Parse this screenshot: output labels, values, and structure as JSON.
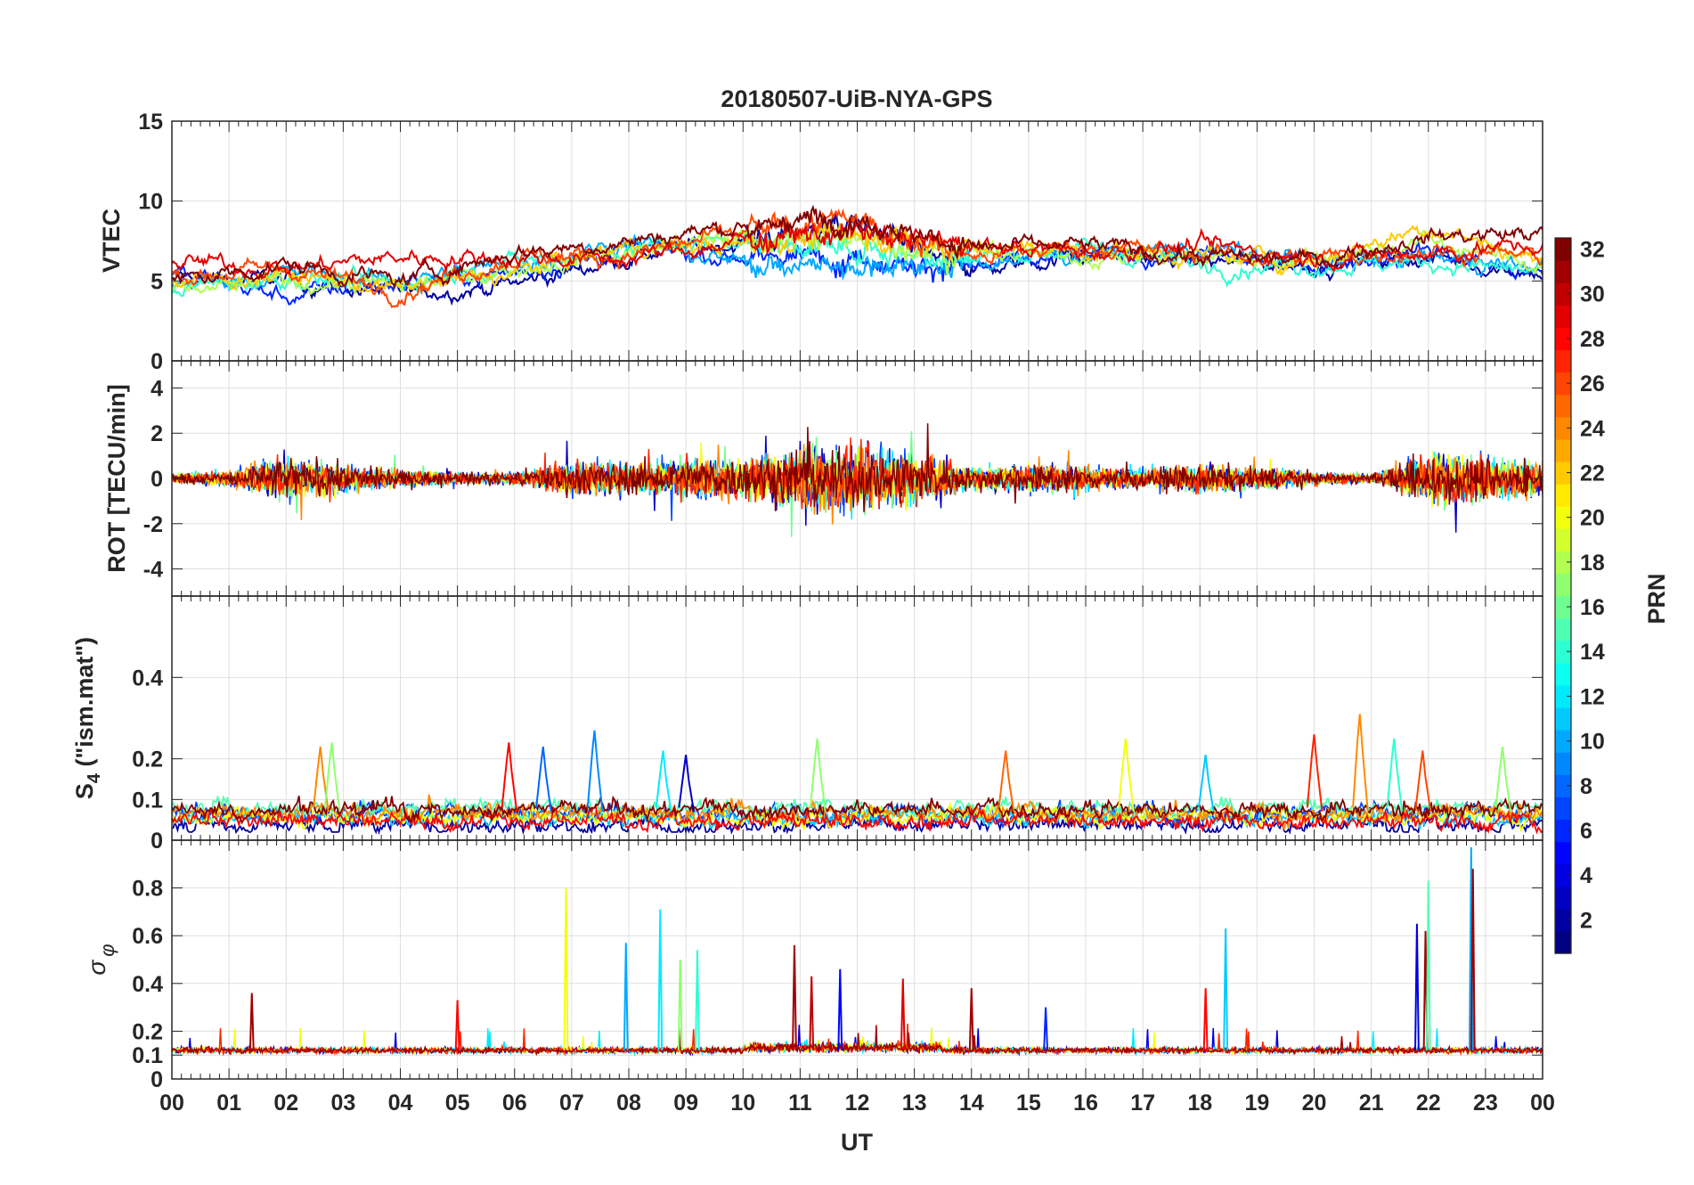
{
  "figure_title": "20180507-UiB-NYA-GPS",
  "xlabel": "UT",
  "colorbar": {
    "label": "PRN",
    "range": [
      1,
      32
    ],
    "ticks": [
      "2",
      "4",
      "6",
      "8",
      "10",
      "12",
      "14",
      "16",
      "18",
      "20",
      "22",
      "24",
      "26",
      "28",
      "30",
      "32"
    ]
  },
  "x_ticks": [
    "00",
    "01",
    "02",
    "03",
    "04",
    "05",
    "06",
    "07",
    "08",
    "09",
    "10",
    "11",
    "12",
    "13",
    "14",
    "15",
    "16",
    "17",
    "18",
    "19",
    "20",
    "21",
    "22",
    "23",
    "00"
  ],
  "chart_data": [
    {
      "type": "line",
      "id": "vtec",
      "title": "20180507-UiB-NYA-GPS",
      "ylabel": "VTEC",
      "xlim": [
        0,
        24
      ],
      "ylim": [
        0,
        15
      ],
      "y_ticks": [
        "0",
        "5",
        "10",
        "15"
      ],
      "series": [
        {
          "name": "PRN 2",
          "prn": 2,
          "x": [
            0,
            2,
            4,
            6,
            8,
            10,
            12,
            14,
            16,
            18,
            20,
            22,
            24
          ],
          "values": [
            5.2,
            5.0,
            4.2,
            4.8,
            6.5,
            7.5,
            8.5,
            5.5,
            6.8,
            6.2,
            6.0,
            6.5,
            5.5
          ]
        },
        {
          "name": "PRN 6",
          "prn": 6,
          "x": [
            0,
            2,
            4,
            6,
            8,
            10,
            12,
            14,
            16,
            18,
            20,
            22,
            24
          ],
          "values": [
            5.5,
            4.0,
            5.0,
            5.5,
            7.0,
            6.5,
            6.5,
            5.8,
            6.5,
            6.5,
            6.0,
            7.0,
            5.2
          ]
        },
        {
          "name": "PRN 10",
          "prn": 10,
          "x": [
            0,
            2,
            4,
            6,
            8,
            10,
            12,
            14,
            16,
            18,
            20,
            22,
            24
          ],
          "values": [
            4.8,
            5.5,
            5.0,
            6.0,
            7.5,
            6.0,
            6.0,
            6.2,
            6.7,
            7.0,
            6.3,
            6.5,
            5.8
          ]
        },
        {
          "name": "PRN 14",
          "prn": 14,
          "x": [
            0,
            2,
            4,
            6,
            8,
            10,
            12,
            14,
            16,
            18,
            20,
            22,
            24
          ],
          "values": [
            4.5,
            5.2,
            4.8,
            6.2,
            7.0,
            7.5,
            7.0,
            6.5,
            7.0,
            6.0,
            6.0,
            6.2,
            5.5
          ]
        },
        {
          "name": "PRN 18",
          "prn": 18,
          "x": [
            0,
            2,
            4,
            6,
            8,
            10,
            12,
            14,
            16,
            18,
            20,
            22,
            24
          ],
          "values": [
            4.2,
            5.0,
            4.6,
            5.8,
            6.8,
            7.8,
            7.5,
            6.8,
            6.6,
            6.4,
            6.5,
            7.5,
            6.0
          ]
        },
        {
          "name": "PRN 22",
          "prn": 22,
          "x": [
            0,
            2,
            4,
            6,
            8,
            10,
            12,
            14,
            16,
            18,
            20,
            22,
            24
          ],
          "values": [
            4.9,
            5.4,
            4.5,
            5.5,
            7.2,
            7.2,
            8.0,
            7.0,
            7.0,
            6.6,
            6.2,
            8.5,
            6.2
          ]
        },
        {
          "name": "PRN 26",
          "prn": 26,
          "x": [
            0,
            2,
            4,
            6,
            8,
            10,
            12,
            14,
            16,
            18,
            20,
            22,
            24
          ],
          "values": [
            5.3,
            5.8,
            4.4,
            6.5,
            6.6,
            8.0,
            8.8,
            6.4,
            7.2,
            6.7,
            6.4,
            7.0,
            6.5
          ]
        },
        {
          "name": "PRN 29",
          "prn": 29,
          "x": [
            0,
            2,
            4,
            6,
            8,
            10,
            12,
            14,
            16,
            18,
            20,
            22,
            24
          ],
          "values": [
            6.2,
            5.8,
            6.5,
            6.5,
            6.4,
            7.5,
            8.0,
            7.2,
            6.8,
            7.2,
            6.5,
            6.8,
            7.2
          ]
        },
        {
          "name": "PRN 32",
          "prn": 32,
          "x": [
            0,
            2,
            4,
            6,
            8,
            10,
            12,
            14,
            16,
            18,
            20,
            22,
            24
          ],
          "values": [
            5.0,
            6.0,
            5.0,
            6.8,
            7.5,
            8.5,
            9.0,
            7.0,
            7.2,
            6.5,
            6.3,
            7.8,
            8.0
          ]
        }
      ]
    },
    {
      "type": "line",
      "id": "rot",
      "ylabel": "ROT [TECU/min]",
      "xlim": [
        0,
        24
      ],
      "ylim": [
        -5.2,
        5.2
      ],
      "y_ticks": [
        "-4",
        "-2",
        "0",
        "2",
        "4"
      ],
      "activity_envelope": {
        "x": [
          0,
          1,
          2,
          3,
          4,
          5,
          6,
          7,
          8,
          9,
          10,
          11,
          12,
          13,
          14,
          15,
          16,
          17,
          18,
          19,
          20,
          21,
          22,
          23,
          24
        ],
        "amplitude": [
          0.5,
          0.7,
          2.2,
          1.3,
          0.8,
          0.6,
          0.6,
          1.6,
          1.6,
          1.8,
          2.0,
          3.2,
          3.0,
          2.6,
          1.0,
          1.4,
          1.2,
          0.9,
          1.3,
          1.2,
          0.6,
          0.4,
          2.6,
          2.0,
          1.6
        ]
      },
      "series": [
        {
          "name": "PRN 3",
          "prn": 3
        },
        {
          "name": "PRN 7",
          "prn": 7
        },
        {
          "name": "PRN 12",
          "prn": 12
        },
        {
          "name": "PRN 16",
          "prn": 16
        },
        {
          "name": "PRN 20",
          "prn": 20
        },
        {
          "name": "PRN 24",
          "prn": 24
        },
        {
          "name": "PRN 27",
          "prn": 27
        },
        {
          "name": "PRN 32",
          "prn": 32
        }
      ]
    },
    {
      "type": "line",
      "id": "s4",
      "ylabel_main": "S",
      "ylabel_sub": "4",
      "ylabel_rest": " (\"ism.mat\")",
      "xlim": [
        0,
        24
      ],
      "ylim": [
        0,
        0.6
      ],
      "y_ticks": [
        "0",
        "0.1",
        "0.2",
        "0.4"
      ],
      "tick_values": [
        0,
        0.1,
        0.2,
        0.4
      ],
      "series": [
        {
          "name": "PRN 2",
          "prn": 2,
          "base": 0.03
        },
        {
          "name": "PRN 7",
          "prn": 7,
          "base": 0.06
        },
        {
          "name": "PRN 11",
          "prn": 11,
          "base": 0.05
        },
        {
          "name": "PRN 15",
          "prn": 15,
          "base": 0.07
        },
        {
          "name": "PRN 20",
          "prn": 20,
          "base": 0.05
        },
        {
          "name": "PRN 24",
          "prn": 24,
          "base": 0.06
        },
        {
          "name": "PRN 28",
          "prn": 28,
          "base": 0.04
        },
        {
          "name": "PRN 32",
          "prn": 32,
          "base": 0.07
        }
      ],
      "peaks": [
        {
          "x": 2.6,
          "y": 0.23,
          "prn": 24
        },
        {
          "x": 2.8,
          "y": 0.24,
          "prn": 17
        },
        {
          "x": 5.9,
          "y": 0.24,
          "prn": 28
        },
        {
          "x": 6.5,
          "y": 0.23,
          "prn": 8
        },
        {
          "x": 7.4,
          "y": 0.27,
          "prn": 9
        },
        {
          "x": 8.6,
          "y": 0.22,
          "prn": 12
        },
        {
          "x": 9.0,
          "y": 0.21,
          "prn": 3
        },
        {
          "x": 11.3,
          "y": 0.25,
          "prn": 17
        },
        {
          "x": 14.6,
          "y": 0.22,
          "prn": 25
        },
        {
          "x": 16.7,
          "y": 0.25,
          "prn": 20
        },
        {
          "x": 18.1,
          "y": 0.21,
          "prn": 11
        },
        {
          "x": 20.0,
          "y": 0.26,
          "prn": 27
        },
        {
          "x": 20.8,
          "y": 0.31,
          "prn": 24
        },
        {
          "x": 21.4,
          "y": 0.25,
          "prn": 14
        },
        {
          "x": 21.9,
          "y": 0.22,
          "prn": 26
        },
        {
          "x": 23.3,
          "y": 0.23,
          "prn": 17
        }
      ]
    },
    {
      "type": "line",
      "id": "sigma_phi",
      "ylabel": "σ",
      "ylabel_sub": "φ",
      "xlim": [
        0,
        24
      ],
      "ylim": [
        0,
        1.0
      ],
      "y_ticks": [
        "0",
        "0.1",
        "0.2",
        "0.4",
        "0.6",
        "0.8"
      ],
      "tick_values": [
        0,
        0.1,
        0.2,
        0.4,
        0.6,
        0.8
      ],
      "baseline": 0.12,
      "series": [
        {
          "name": "PRN 4",
          "prn": 4
        },
        {
          "name": "PRN 12",
          "prn": 12
        },
        {
          "name": "PRN 20",
          "prn": 20
        },
        {
          "name": "PRN 27",
          "prn": 27
        },
        {
          "name": "PRN 31",
          "prn": 31
        }
      ],
      "peaks": [
        {
          "x": 1.4,
          "y": 0.36,
          "prn": 31
        },
        {
          "x": 5.0,
          "y": 0.33,
          "prn": 28
        },
        {
          "x": 6.9,
          "y": 0.8,
          "prn": 20
        },
        {
          "x": 7.95,
          "y": 0.57,
          "prn": 10
        },
        {
          "x": 8.55,
          "y": 0.71,
          "prn": 12
        },
        {
          "x": 8.9,
          "y": 0.5,
          "prn": 17
        },
        {
          "x": 9.2,
          "y": 0.54,
          "prn": 14
        },
        {
          "x": 10.9,
          "y": 0.56,
          "prn": 31
        },
        {
          "x": 11.2,
          "y": 0.43,
          "prn": 30
        },
        {
          "x": 11.7,
          "y": 0.46,
          "prn": 5
        },
        {
          "x": 12.8,
          "y": 0.42,
          "prn": 29
        },
        {
          "x": 14.0,
          "y": 0.38,
          "prn": 31
        },
        {
          "x": 15.3,
          "y": 0.3,
          "prn": 6
        },
        {
          "x": 18.1,
          "y": 0.38,
          "prn": 28
        },
        {
          "x": 18.45,
          "y": 0.63,
          "prn": 11
        },
        {
          "x": 21.8,
          "y": 0.65,
          "prn": 4
        },
        {
          "x": 21.95,
          "y": 0.62,
          "prn": 31
        },
        {
          "x": 22.0,
          "y": 0.83,
          "prn": 15
        },
        {
          "x": 22.75,
          "y": 0.97,
          "prn": 10
        },
        {
          "x": 22.78,
          "y": 0.88,
          "prn": 31
        }
      ]
    }
  ]
}
